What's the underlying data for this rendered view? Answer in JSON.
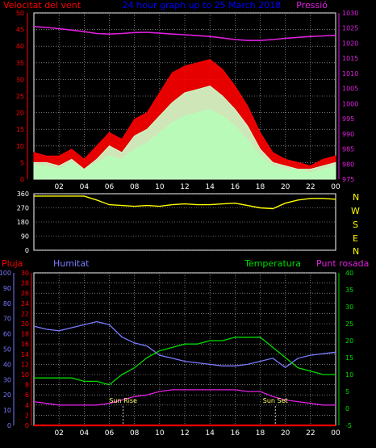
{
  "chart_data": [
    {
      "type": "line",
      "title": "24 hour graph up to 25 March 2018",
      "left_label": "Velocitat del vent",
      "right_label": "Pressió",
      "x_ticks": [
        "02",
        "04",
        "06",
        "08",
        "10",
        "12",
        "14",
        "16",
        "18",
        "20",
        "22",
        "00"
      ],
      "y_left": {
        "min": 0,
        "max": 50,
        "ticks": [
          0,
          5,
          10,
          15,
          20,
          25,
          30,
          35,
          40,
          45,
          50
        ]
      },
      "y_right": {
        "min": 975,
        "max": 1030,
        "ticks": [
          975,
          980,
          985,
          990,
          995,
          1000,
          1005,
          1010,
          1015,
          1020,
          1025,
          1030
        ]
      },
      "series": [
        {
          "name": "Pressió",
          "color": "#e020e0",
          "axis": "right",
          "x": [
            0,
            1,
            2,
            3,
            4,
            5,
            6,
            7,
            8,
            9,
            10,
            11,
            12,
            13,
            14,
            15,
            16,
            17,
            18,
            19,
            20,
            21,
            22,
            23,
            24
          ],
          "values": [
            1025.5,
            1025.2,
            1024.8,
            1024.3,
            1023.8,
            1023.2,
            1023.0,
            1023.2,
            1023.5,
            1023.6,
            1023.3,
            1023.0,
            1022.8,
            1022.5,
            1022.2,
            1021.7,
            1021.2,
            1020.9,
            1020.9,
            1021.2,
            1021.6,
            1021.9,
            1022.2,
            1022.4,
            1022.6
          ]
        },
        {
          "name": "Ràfega",
          "color": "#ff0000",
          "axis": "left",
          "x": [
            0,
            1,
            2,
            3,
            4,
            5,
            6,
            7,
            8,
            9,
            10,
            11,
            12,
            13,
            14,
            15,
            16,
            17,
            18,
            19,
            20,
            21,
            22,
            23,
            24
          ],
          "values": [
            8,
            7,
            7,
            9,
            6,
            10,
            14,
            12,
            18,
            20,
            26,
            32,
            34,
            35,
            36,
            33,
            28,
            22,
            14,
            8,
            6,
            5,
            4,
            6,
            7
          ]
        },
        {
          "name": "Velocitat mitjana",
          "color": "#00dd00",
          "axis": "left",
          "x": [
            0,
            1,
            2,
            3,
            4,
            5,
            6,
            7,
            8,
            9,
            10,
            11,
            12,
            13,
            14,
            15,
            16,
            17,
            18,
            19,
            20,
            21,
            22,
            23,
            24
          ],
          "values": [
            4,
            4,
            3,
            5,
            3,
            5,
            7,
            6,
            9,
            11,
            14,
            17,
            19,
            20,
            21,
            19,
            16,
            12,
            7,
            4,
            3,
            3,
            2,
            3,
            4
          ]
        },
        {
          "name": "Vent",
          "color": "#ccffcc",
          "axis": "left",
          "x": [
            0,
            1,
            2,
            3,
            4,
            5,
            6,
            7,
            8,
            9,
            10,
            11,
            12,
            13,
            14,
            15,
            16,
            17,
            18,
            19,
            20,
            21,
            22,
            23,
            24
          ],
          "values": [
            5,
            5,
            4,
            6,
            3,
            6,
            10,
            8,
            13,
            15,
            19,
            23,
            26,
            27,
            28,
            25,
            21,
            16,
            9,
            5,
            4,
            3,
            3,
            4,
            5
          ]
        }
      ]
    },
    {
      "type": "line",
      "left_ticks": [
        "360",
        "270",
        "180",
        "90",
        "0"
      ],
      "right_labels": [
        "N",
        "W",
        "S",
        "E",
        "N"
      ],
      "x_ticks": [
        "02",
        "04",
        "06",
        "08",
        "10",
        "12",
        "14",
        "16",
        "18",
        "20",
        "22",
        "00"
      ],
      "y_range": [
        0,
        360
      ],
      "series": [
        {
          "name": "Direcció del vent",
          "color": "#ffff00",
          "x": [
            0,
            1,
            2,
            3,
            4,
            5,
            6,
            7,
            8,
            9,
            10,
            11,
            12,
            13,
            14,
            15,
            16,
            17,
            18,
            19,
            20,
            21,
            22,
            23,
            24
          ],
          "values": [
            345,
            345,
            345,
            345,
            345,
            320,
            290,
            285,
            280,
            285,
            280,
            290,
            295,
            290,
            290,
            295,
            300,
            285,
            270,
            265,
            300,
            320,
            330,
            330,
            325
          ]
        }
      ]
    },
    {
      "type": "line",
      "left_labels": [
        "Pluja",
        "Humitat"
      ],
      "right_labels": [
        "Temperatura",
        "Punt rosada"
      ],
      "annotations": [
        "Sun Rise",
        "Sun Set"
      ],
      "x_ticks": [
        "02",
        "04",
        "06",
        "08",
        "10",
        "12",
        "14",
        "16",
        "18",
        "20",
        "22",
        "00"
      ],
      "y_humidity": {
        "min": 0,
        "max": 100,
        "ticks": [
          0,
          10,
          20,
          30,
          40,
          50,
          60,
          70,
          80,
          90,
          100
        ]
      },
      "y_rain": {
        "min": 0,
        "max": 30,
        "ticks": [
          0,
          2,
          4,
          6,
          8,
          10,
          12,
          14,
          16,
          18,
          20,
          22,
          24,
          26,
          28,
          30
        ]
      },
      "y_temp": {
        "min": -5,
        "max": 40,
        "ticks": [
          -5,
          0,
          5,
          10,
          15,
          20,
          25,
          30,
          35,
          40
        ]
      },
      "sun_rise_x": 7.1,
      "sun_set_x": 19.2,
      "series": [
        {
          "name": "Pluja",
          "color": "#ff0000",
          "axis": "rain",
          "x": [
            0,
            24
          ],
          "values": [
            0,
            0
          ]
        },
        {
          "name": "Humitat",
          "color": "#7a7aff",
          "axis": "humidity",
          "x": [
            0,
            1,
            2,
            3,
            4,
            5,
            6,
            7,
            8,
            9,
            10,
            11,
            12,
            13,
            14,
            15,
            16,
            17,
            18,
            19,
            20,
            21,
            22,
            23,
            24
          ],
          "values": [
            65,
            63,
            62,
            64,
            66,
            68,
            66,
            58,
            54,
            52,
            46,
            44,
            42,
            41,
            40,
            39,
            39,
            40,
            42,
            44,
            38,
            44,
            46,
            47,
            48
          ]
        },
        {
          "name": "Temperatura",
          "color": "#00dd00",
          "axis": "temp",
          "x": [
            0,
            1,
            2,
            3,
            4,
            5,
            6,
            7,
            8,
            9,
            10,
            11,
            12,
            13,
            14,
            15,
            16,
            17,
            18,
            19,
            20,
            21,
            22,
            23,
            24
          ],
          "values": [
            9,
            9,
            9,
            9,
            8,
            8,
            7,
            10,
            12,
            15,
            17,
            18,
            19,
            19,
            20,
            20,
            21,
            21,
            21,
            18,
            15,
            12,
            11,
            10,
            10
          ]
        },
        {
          "name": "Punt rosada",
          "color": "#e020e0",
          "axis": "temp",
          "x": [
            0,
            1,
            2,
            3,
            4,
            5,
            6,
            7,
            8,
            9,
            10,
            11,
            12,
            13,
            14,
            15,
            16,
            17,
            18,
            19,
            20,
            21,
            22,
            23,
            24
          ],
          "values": [
            2,
            1.5,
            1,
            1,
            1,
            1,
            1.5,
            2.5,
            3.5,
            4,
            5,
            5.5,
            5.5,
            5.5,
            5.5,
            5.5,
            5.5,
            5,
            5,
            3.5,
            2.5,
            2,
            1.5,
            1,
            1
          ]
        }
      ]
    }
  ]
}
